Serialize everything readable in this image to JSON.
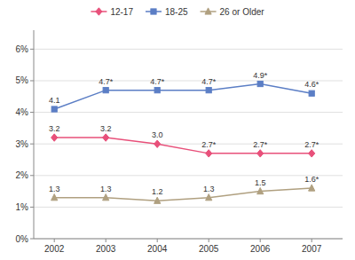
{
  "chart_data": {
    "type": "line",
    "x": [
      2002,
      2003,
      2004,
      2005,
      2006,
      2007
    ],
    "xlim": [
      2001.6,
      2007.6
    ],
    "xticks": [
      2002,
      2003,
      2004,
      2005,
      2006,
      2007
    ],
    "ylim": [
      0,
      6.6
    ],
    "yticks": [
      {
        "value": 0,
        "label": "0%"
      },
      {
        "value": 1,
        "label": "1%"
      },
      {
        "value": 2,
        "label": "2%"
      },
      {
        "value": 3,
        "label": "3%"
      },
      {
        "value": 4,
        "label": "4%"
      },
      {
        "value": 5,
        "label": "5%"
      },
      {
        "value": 6,
        "label": "6%"
      }
    ],
    "grid": true,
    "legend": "top",
    "data_labels": true,
    "series": [
      {
        "name": "12-17",
        "color": "#e8507a",
        "marker": "diamond",
        "values": [
          3.2,
          3.2,
          3.0,
          2.7,
          2.7,
          2.7
        ],
        "value_labels": [
          "3.2",
          "3.2",
          "3.0",
          "2.7*",
          "2.7*",
          "2.7*"
        ]
      },
      {
        "name": "18-25",
        "color": "#5b7ec5",
        "marker": "square",
        "values": [
          4.1,
          4.7,
          4.7,
          4.7,
          4.9,
          4.6
        ],
        "value_labels": [
          "4.1",
          "4.7*",
          "4.7*",
          "4.7*",
          "4.9*",
          "4.6*"
        ]
      },
      {
        "name": "26 or Older",
        "color": "#b0a080",
        "marker": "triangle",
        "values": [
          1.3,
          1.3,
          1.2,
          1.3,
          1.5,
          1.6
        ],
        "value_labels": [
          "1.3",
          "1.3",
          "1.2",
          "1.3",
          "1.5",
          "1.6*"
        ]
      }
    ]
  }
}
